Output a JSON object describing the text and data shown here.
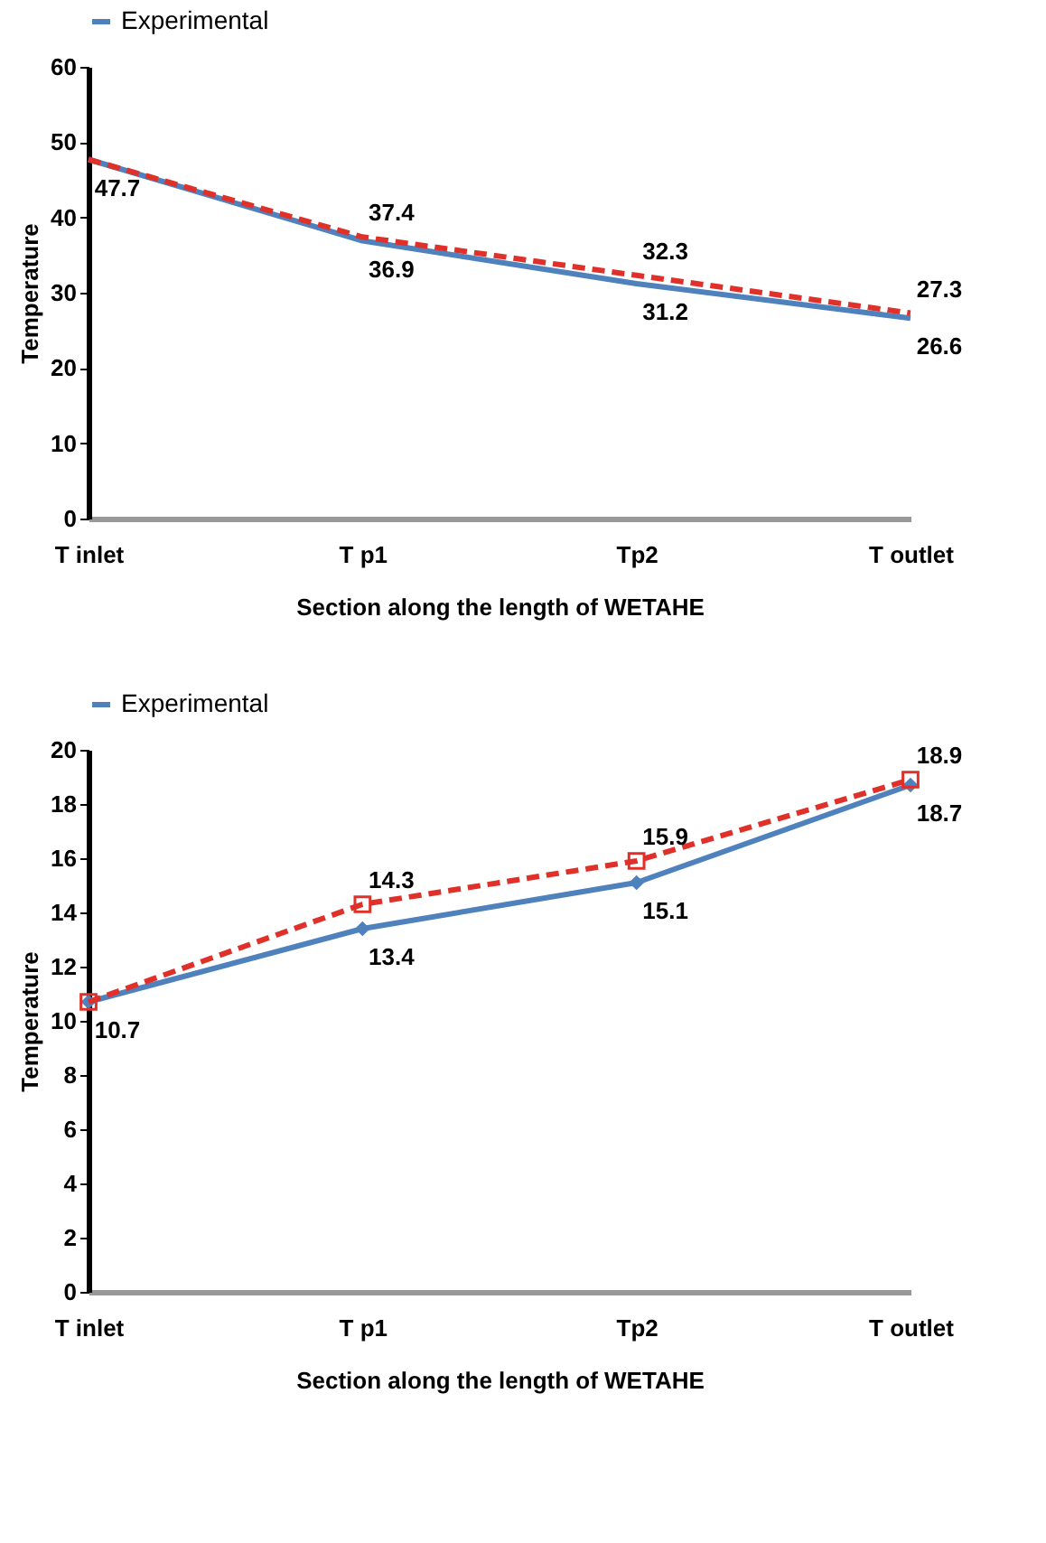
{
  "chart_data": [
    {
      "type": "line",
      "categories": [
        "T inlet",
        "T p1",
        "Tp2",
        "T outlet"
      ],
      "xlabel": "Section along the length of WETAHE",
      "ylabel": "Temperature",
      "ylim": [
        0,
        60
      ],
      "yticks": [
        0,
        10,
        20,
        30,
        40,
        50,
        60
      ],
      "grid": false,
      "legend": "top",
      "series": [
        {
          "name": "Experimental",
          "color": "#4f81bd",
          "line_style": "solid",
          "marker": "none",
          "values": [
            47.7,
            36.9,
            31.2,
            26.6
          ],
          "value_labels": [
            "47.7",
            "36.9",
            "31.2",
            "26.6"
          ]
        },
        {
          "color": "#e0302a",
          "line_style": "dashed",
          "marker": "none",
          "values": [
            47.7,
            37.4,
            32.3,
            27.3
          ],
          "value_labels": [
            null,
            "37.4",
            "32.3",
            "27.3"
          ]
        }
      ]
    },
    {
      "type": "line",
      "categories": [
        "T inlet",
        "T p1",
        "Tp2",
        "T outlet"
      ],
      "xlabel": "Section along the length of WETAHE",
      "ylabel": "Temperature",
      "ylim": [
        0,
        20
      ],
      "yticks": [
        0,
        2,
        4,
        6,
        8,
        10,
        12,
        14,
        16,
        18,
        20
      ],
      "grid": false,
      "legend": "top",
      "series": [
        {
          "name": "Experimental",
          "color": "#4f81bd",
          "line_style": "solid",
          "marker": "diamond",
          "values": [
            10.7,
            13.4,
            15.1,
            18.7
          ],
          "value_labels": [
            "10.7",
            "13.4",
            "15.1",
            "18.7"
          ]
        },
        {
          "color": "#e0302a",
          "line_style": "dashed",
          "marker": "square",
          "values": [
            10.7,
            14.3,
            15.9,
            18.9
          ],
          "value_labels": [
            null,
            "14.3",
            "15.9",
            "18.9"
          ]
        }
      ]
    }
  ]
}
